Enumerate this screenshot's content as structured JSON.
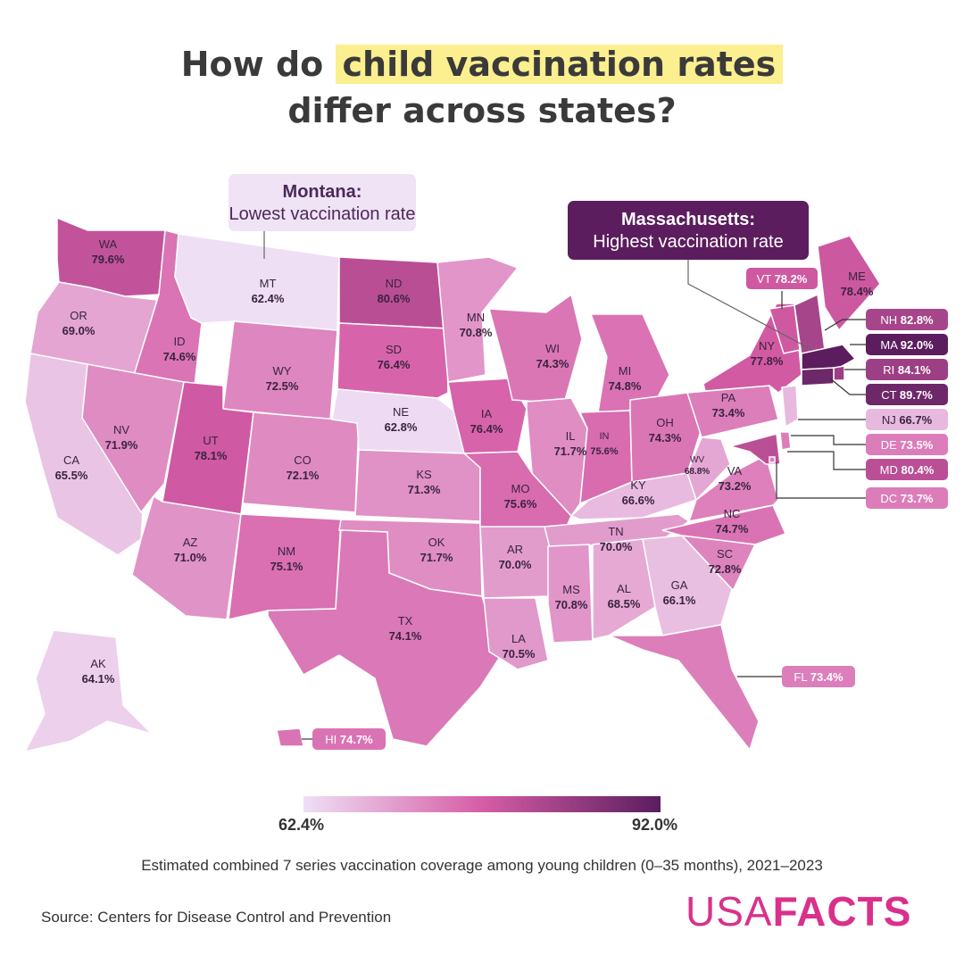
{
  "title": {
    "line1_pre": "How do ",
    "line1_highlight": "child vaccination rates",
    "line2": "differ across states?"
  },
  "annotations": {
    "lowest": {
      "name": "Montana:",
      "text": "Lowest vaccination rate"
    },
    "highest": {
      "name": "Massachusetts:",
      "text": "Highest vaccination rate"
    }
  },
  "colors": {
    "scale_low": "#efdff5",
    "scale_mid": "#d65da6",
    "scale_high": "#5b1d5e",
    "brand": "#d9318b",
    "highlight": "#fbef8f"
  },
  "legend": {
    "min_label": "62.4%",
    "max_label": "92.0%",
    "min": 62.4,
    "max": 92.0
  },
  "states": [
    {
      "abbr": "WA",
      "value": 79.6,
      "label": "79.6%"
    },
    {
      "abbr": "OR",
      "value": 69.0,
      "label": "69.0%"
    },
    {
      "abbr": "CA",
      "value": 65.5,
      "label": "65.5%"
    },
    {
      "abbr": "ID",
      "value": 74.6,
      "label": "74.6%"
    },
    {
      "abbr": "NV",
      "value": 71.9,
      "label": "71.9%"
    },
    {
      "abbr": "MT",
      "value": 62.4,
      "label": "62.4%"
    },
    {
      "abbr": "WY",
      "value": 72.5,
      "label": "72.5%"
    },
    {
      "abbr": "UT",
      "value": 78.1,
      "label": "78.1%"
    },
    {
      "abbr": "AZ",
      "value": 71.0,
      "label": "71.0%"
    },
    {
      "abbr": "CO",
      "value": 72.1,
      "label": "72.1%"
    },
    {
      "abbr": "NM",
      "value": 75.1,
      "label": "75.1%"
    },
    {
      "abbr": "ND",
      "value": 80.6,
      "label": "80.6%"
    },
    {
      "abbr": "SD",
      "value": 76.4,
      "label": "76.4%"
    },
    {
      "abbr": "NE",
      "value": 62.8,
      "label": "62.8%"
    },
    {
      "abbr": "KS",
      "value": 71.3,
      "label": "71.3%"
    },
    {
      "abbr": "OK",
      "value": 71.7,
      "label": "71.7%"
    },
    {
      "abbr": "TX",
      "value": 74.1,
      "label": "74.1%"
    },
    {
      "abbr": "MN",
      "value": 70.8,
      "label": "70.8%"
    },
    {
      "abbr": "IA",
      "value": 76.4,
      "label": "76.4%"
    },
    {
      "abbr": "MO",
      "value": 75.6,
      "label": "75.6%"
    },
    {
      "abbr": "AR",
      "value": 70.0,
      "label": "70.0%"
    },
    {
      "abbr": "LA",
      "value": 70.5,
      "label": "70.5%"
    },
    {
      "abbr": "WI",
      "value": 74.3,
      "label": "74.3%"
    },
    {
      "abbr": "IL",
      "value": 71.7,
      "label": "71.7%"
    },
    {
      "abbr": "MI",
      "value": 74.8,
      "label": "74.8%"
    },
    {
      "abbr": "IN",
      "value": 75.6,
      "label": "75.6%"
    },
    {
      "abbr": "OH",
      "value": 74.3,
      "label": "74.3%"
    },
    {
      "abbr": "KY",
      "value": 66.6,
      "label": "66.6%"
    },
    {
      "abbr": "TN",
      "value": 70.0,
      "label": "70.0%"
    },
    {
      "abbr": "MS",
      "value": 70.8,
      "label": "70.8%"
    },
    {
      "abbr": "AL",
      "value": 68.5,
      "label": "68.5%"
    },
    {
      "abbr": "GA",
      "value": 66.1,
      "label": "66.1%"
    },
    {
      "abbr": "FL",
      "value": 73.4,
      "label": "73.4%"
    },
    {
      "abbr": "SC",
      "value": 72.8,
      "label": "72.8%"
    },
    {
      "abbr": "NC",
      "value": 74.7,
      "label": "74.7%"
    },
    {
      "abbr": "VA",
      "value": 73.2,
      "label": "73.2%"
    },
    {
      "abbr": "WV",
      "value": 68.8,
      "label": "68.8%"
    },
    {
      "abbr": "PA",
      "value": 73.4,
      "label": "73.4%"
    },
    {
      "abbr": "NY",
      "value": 77.8,
      "label": "77.8%"
    },
    {
      "abbr": "VT",
      "value": 78.2,
      "label": "78.2%"
    },
    {
      "abbr": "ME",
      "value": 78.4,
      "label": "78.4%"
    },
    {
      "abbr": "NH",
      "value": 82.8,
      "label": "82.8%"
    },
    {
      "abbr": "MA",
      "value": 92.0,
      "label": "92.0%"
    },
    {
      "abbr": "RI",
      "value": 84.1,
      "label": "84.1%"
    },
    {
      "abbr": "CT",
      "value": 89.7,
      "label": "89.7%"
    },
    {
      "abbr": "NJ",
      "value": 66.7,
      "label": "66.7%"
    },
    {
      "abbr": "DE",
      "value": 73.5,
      "label": "73.5%"
    },
    {
      "abbr": "MD",
      "value": 80.4,
      "label": "80.4%"
    },
    {
      "abbr": "DC",
      "value": 73.7,
      "label": "73.7%"
    },
    {
      "abbr": "AK",
      "value": 64.1,
      "label": "64.1%"
    },
    {
      "abbr": "HI",
      "value": 74.7,
      "label": "74.7%"
    }
  ],
  "caption": "Estimated combined 7 series vaccination coverage among young children (0–35 months), 2021–2023",
  "source": "Source: Centers for Disease Control and Prevention",
  "logo": {
    "part1": "USA",
    "part2": "FACTS"
  }
}
